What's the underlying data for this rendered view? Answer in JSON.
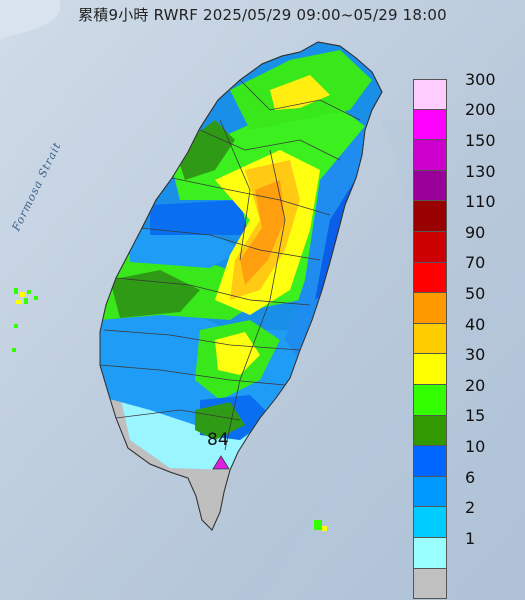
{
  "title": "累積9小時 RWRF 2025/05/29 09:00~05/29 18:00",
  "sea_label": "Formosa Strait",
  "legend": [
    {
      "label": "300",
      "color": "#ffccff"
    },
    {
      "label": "200",
      "color": "#ff00ff"
    },
    {
      "label": "150",
      "color": "#cc00cc"
    },
    {
      "label": "130",
      "color": "#990099"
    },
    {
      "label": "110",
      "color": "#990000"
    },
    {
      "label": "90",
      "color": "#cc0000"
    },
    {
      "label": "70",
      "color": "#ff0000"
    },
    {
      "label": "50",
      "color": "#ff9900"
    },
    {
      "label": "40",
      "color": "#ffcc00"
    },
    {
      "label": "30",
      "color": "#ffff00"
    },
    {
      "label": "20",
      "color": "#33ff00"
    },
    {
      "label": "15",
      "color": "#339900"
    },
    {
      "label": "10",
      "color": "#0066ff"
    },
    {
      "label": "6",
      "color": "#0099ff"
    },
    {
      "label": "2",
      "color": "#00ccff"
    },
    {
      "label": "1",
      "color": "#99ffff"
    },
    {
      "label": "",
      "color": "#c0c0c0"
    }
  ],
  "max_station": {
    "value": "84",
    "color": "#e020e0"
  }
}
